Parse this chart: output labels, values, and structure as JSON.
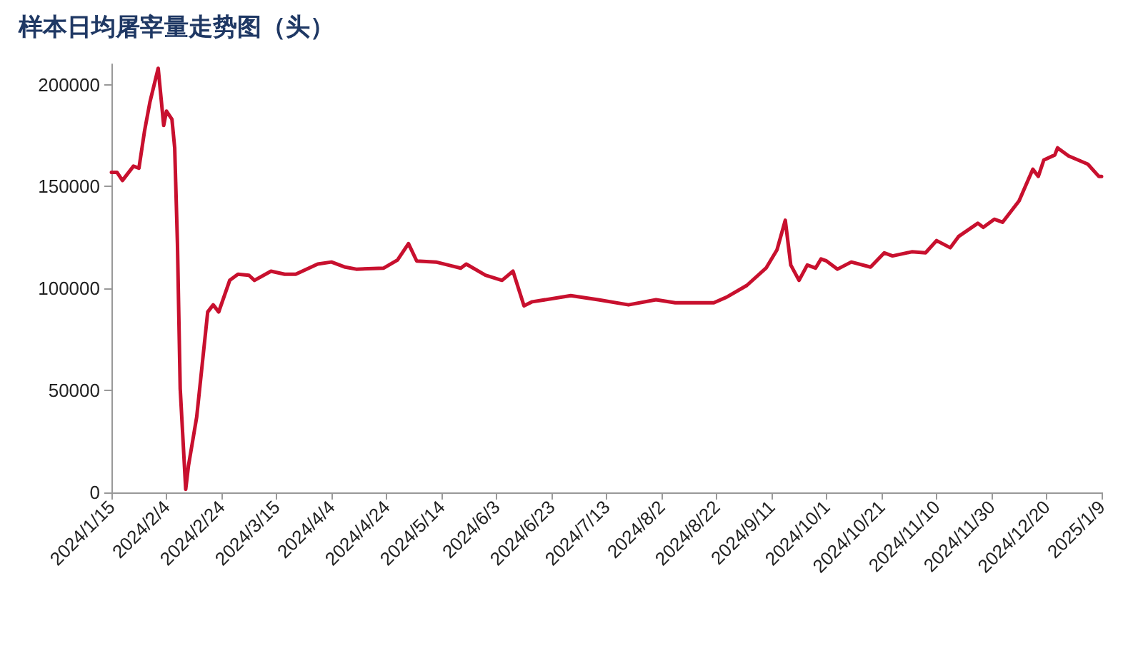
{
  "chart_data": {
    "type": "line",
    "title": "样本日均屠宰量走势图（头）",
    "x": [
      "2024-01-15",
      "2024-01-17",
      "2024-01-19",
      "2024-01-23",
      "2024-01-25",
      "2024-01-27",
      "2024-01-29",
      "2024-02-01",
      "2024-02-03",
      "2024-02-04",
      "2024-02-06",
      "2024-02-07",
      "2024-02-08",
      "2024-02-09",
      "2024-02-11",
      "2024-02-12",
      "2024-02-15",
      "2024-02-19",
      "2024-02-21",
      "2024-02-23",
      "2024-02-27",
      "2024-03-01",
      "2024-03-05",
      "2024-03-07",
      "2024-03-13",
      "2024-03-18",
      "2024-03-22",
      "2024-03-30",
      "2024-04-04",
      "2024-04-09",
      "2024-04-13",
      "2024-04-23",
      "2024-04-28",
      "2024-05-02",
      "2024-05-05",
      "2024-05-12",
      "2024-05-18",
      "2024-05-21",
      "2024-05-23",
      "2024-05-30",
      "2024-06-05",
      "2024-06-09",
      "2024-06-13",
      "2024-06-16",
      "2024-06-30",
      "2024-07-10",
      "2024-07-21",
      "2024-07-31",
      "2024-08-07",
      "2024-08-21",
      "2024-08-26",
      "2024-09-02",
      "2024-09-09",
      "2024-09-13",
      "2024-09-16",
      "2024-09-18",
      "2024-09-21",
      "2024-09-24",
      "2024-09-27",
      "2024-09-29",
      "2024-10-01",
      "2024-10-05",
      "2024-10-10",
      "2024-10-17",
      "2024-10-22",
      "2024-10-25",
      "2024-11-01",
      "2024-11-06",
      "2024-11-10",
      "2024-11-15",
      "2024-11-18",
      "2024-11-25",
      "2024-11-27",
      "2024-12-01",
      "2024-12-04",
      "2024-12-10",
      "2024-12-15",
      "2024-12-17",
      "2024-12-19",
      "2024-12-23",
      "2024-12-24",
      "2024-12-28",
      "2025-01-04",
      "2025-01-08",
      "2025-01-09"
    ],
    "series": [
      {
        "color": "#c8102e",
        "values": [
          157000,
          157000,
          153000,
          160000,
          159000,
          177000,
          191500,
          208000,
          180000,
          187000,
          183000,
          169000,
          122000,
          51000,
          1500,
          13000,
          37000,
          88500,
          92000,
          88500,
          104000,
          107000,
          106500,
          104000,
          108500,
          107000,
          107000,
          112000,
          113000,
          110500,
          109500,
          110000,
          114000,
          122000,
          113500,
          113000,
          111000,
          110000,
          112000,
          106500,
          104000,
          108500,
          91500,
          93500,
          96500,
          94500,
          92000,
          94500,
          93000,
          93000,
          96000,
          101500,
          110000,
          119000,
          133500,
          111500,
          104000,
          111500,
          110000,
          114500,
          113500,
          109500,
          113000,
          110500,
          117500,
          116000,
          118000,
          117500,
          123500,
          120000,
          125500,
          132000,
          130000,
          134000,
          132500,
          143000,
          158500,
          155000,
          163000,
          165500,
          169000,
          165000,
          161000,
          155000,
          155000
        ]
      }
    ],
    "xlim": [
      "2024-01-15",
      "2025-01-09"
    ],
    "xticks": [
      {
        "value": "2024-01-15",
        "label": "2024/1/15"
      },
      {
        "value": "2024-02-04",
        "label": "2024/2/4"
      },
      {
        "value": "2024-02-24",
        "label": "2024/2/24"
      },
      {
        "value": "2024-03-15",
        "label": "2024/3/15"
      },
      {
        "value": "2024-04-04",
        "label": "2024/4/4"
      },
      {
        "value": "2024-04-24",
        "label": "2024/4/24"
      },
      {
        "value": "2024-05-14",
        "label": "2024/5/14"
      },
      {
        "value": "2024-06-03",
        "label": "2024/6/3"
      },
      {
        "value": "2024-06-23",
        "label": "2024/6/23"
      },
      {
        "value": "2024-07-13",
        "label": "2024/7/13"
      },
      {
        "value": "2024-08-02",
        "label": "2024/8/2"
      },
      {
        "value": "2024-08-22",
        "label": "2024/8/22"
      },
      {
        "value": "2024-09-11",
        "label": "2024/9/11"
      },
      {
        "value": "2024-10-01",
        "label": "2024/10/1"
      },
      {
        "value": "2024-10-21",
        "label": "2024/10/21"
      },
      {
        "value": "2024-11-10",
        "label": "2024/11/10"
      },
      {
        "value": "2024-11-30",
        "label": "2024/11/30"
      },
      {
        "value": "2024-12-20",
        "label": "2024/12/20"
      },
      {
        "value": "2025-01-09",
        "label": "2025/1/9"
      }
    ],
    "ylim": [
      0,
      210000
    ],
    "yticks": [
      0,
      50000,
      100000,
      150000,
      200000
    ],
    "grid": false,
    "marker": "none",
    "line_style": "solid"
  }
}
